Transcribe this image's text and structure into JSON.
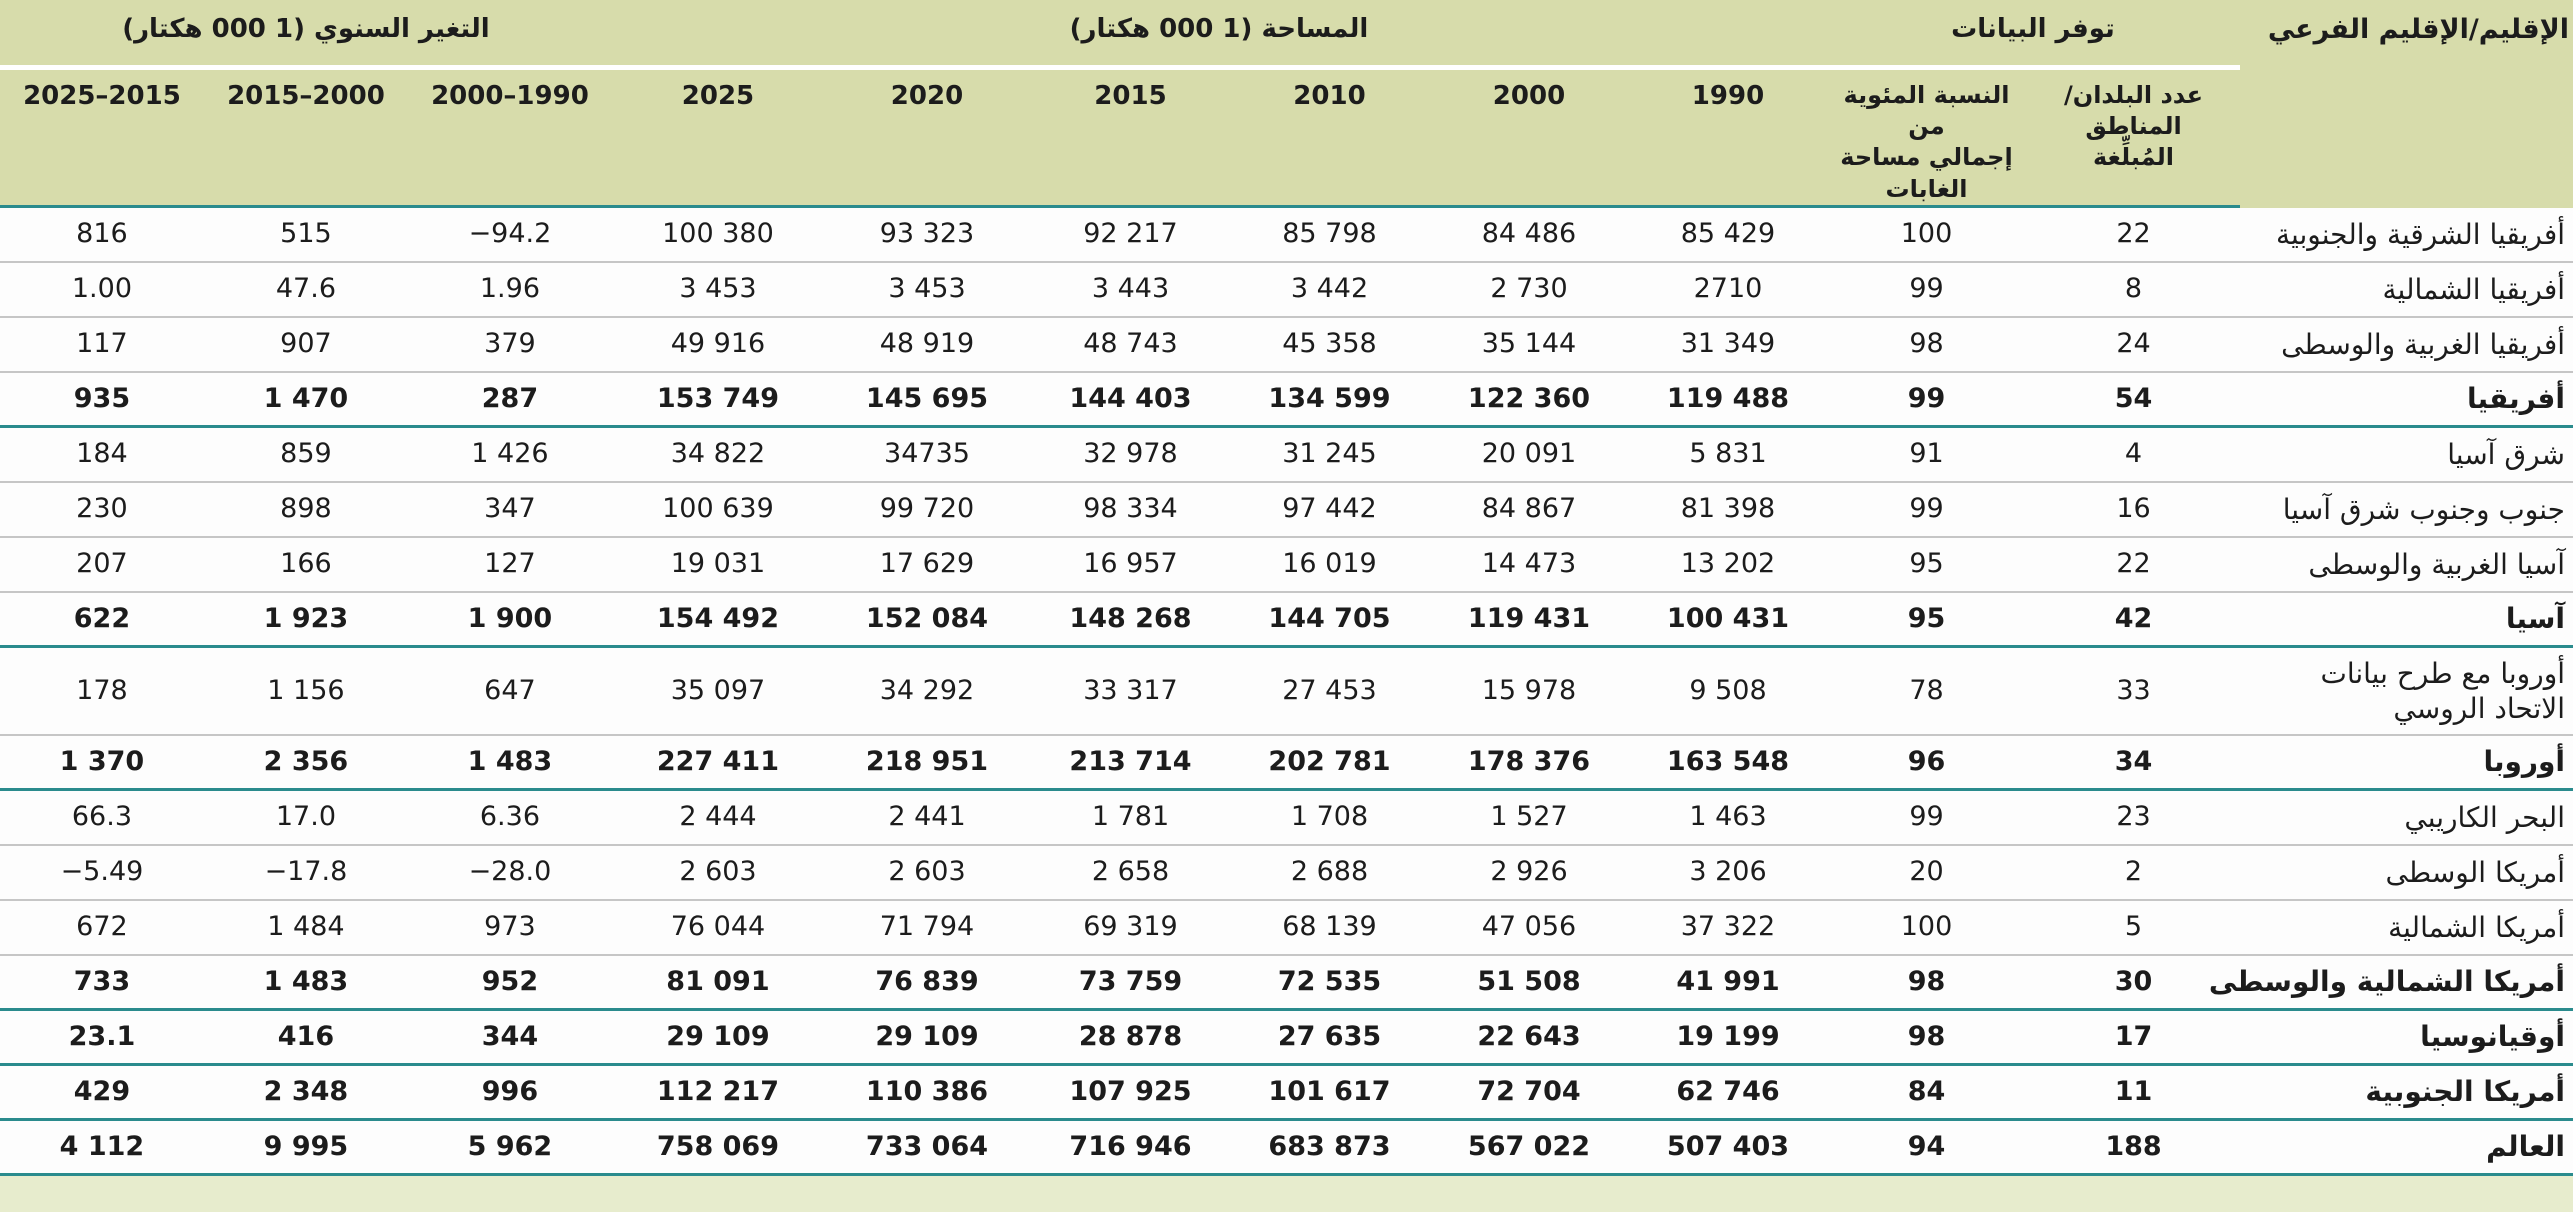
{
  "colors": {
    "header_background": "#d7dcab",
    "footer_strip": "#e7eccd",
    "accent_teal": "#2a8b8d",
    "row_separator": "#c6c6c6"
  },
  "table": {
    "region_header": "الإقليم/الإقليم الفرعي",
    "groups": {
      "availability": "توفر البيانات",
      "area": "المساحة (1 000 هكتار)",
      "change": "التغير السنوي (1 000 هكتار)"
    },
    "columns": {
      "count": "عدد البلدان/المناطق\nالمُبلِّغة",
      "pct": "النسبة المئوية من\nإجمالي مساحة\nالغابات",
      "y1990": "1990",
      "y2000": "2000",
      "y2010": "2010",
      "y2015": "2015",
      "y2020": "2020",
      "y2025": "2025",
      "c1990_2000": "2000–1990",
      "c2000_2015": "2015–2000",
      "c2015_2025": "2025–2015"
    },
    "rows": [
      {
        "region": "أفريقيا الشرقية والجنوبية",
        "bold": false,
        "tall": false,
        "sep": "gray",
        "cells": [
          "22",
          "100",
          "85 429",
          "84 486",
          "85 798",
          "92 217",
          "93 323",
          "100 380",
          "−94.2",
          "515",
          "816"
        ]
      },
      {
        "region": "أفريقيا الشمالية",
        "bold": false,
        "tall": false,
        "sep": "gray",
        "cells": [
          "8",
          "99",
          "2710",
          "2 730",
          "3 442",
          "3 443",
          "3 453",
          "3 453",
          "1.96",
          "47.6",
          "1.00"
        ]
      },
      {
        "region": "أفريقيا الغربية والوسطى",
        "bold": false,
        "tall": false,
        "sep": "gray",
        "cells": [
          "24",
          "98",
          "31 349",
          "35 144",
          "45 358",
          "48 743",
          "48 919",
          "49 916",
          "379",
          "907",
          "117"
        ]
      },
      {
        "region": "أفريقيا",
        "bold": true,
        "tall": false,
        "sep": "teal",
        "cells": [
          "54",
          "99",
          "119 488",
          "122 360",
          "134 599",
          "144 403",
          "145 695",
          "153 749",
          "287",
          "1 470",
          "935"
        ]
      },
      {
        "region": "شرق آسيا",
        "bold": false,
        "tall": false,
        "sep": "gray",
        "cells": [
          "4",
          "91",
          "5 831",
          "20 091",
          "31 245",
          "32 978",
          "34735",
          "34 822",
          "1 426",
          "859",
          "184"
        ]
      },
      {
        "region": "جنوب وجنوب شرق آسيا",
        "bold": false,
        "tall": false,
        "sep": "gray",
        "cells": [
          "16",
          "99",
          "81 398",
          "84 867",
          "97 442",
          "98 334",
          "99 720",
          "100 639",
          "347",
          "898",
          "230"
        ]
      },
      {
        "region": "آسيا الغربية والوسطى",
        "bold": false,
        "tall": false,
        "sep": "gray",
        "cells": [
          "22",
          "95",
          "13 202",
          "14 473",
          "16 019",
          "16 957",
          "17 629",
          "19 031",
          "127",
          "166",
          "207"
        ]
      },
      {
        "region": "آسيا",
        "bold": true,
        "tall": false,
        "sep": "teal",
        "cells": [
          "42",
          "95",
          "100 431",
          "119 431",
          "144 705",
          "148 268",
          "152 084",
          "154 492",
          "1 900",
          "1 923",
          "622"
        ]
      },
      {
        "region": "أوروبا مع طرح بيانات الاتحاد الروسي",
        "bold": false,
        "tall": true,
        "sep": "gray",
        "cells": [
          "33",
          "78",
          "9 508",
          "15 978",
          "27 453",
          "33 317",
          "34 292",
          "35 097",
          "647",
          "1 156",
          "178"
        ]
      },
      {
        "region": "أوروبا",
        "bold": true,
        "tall": false,
        "sep": "teal",
        "cells": [
          "34",
          "96",
          "163 548",
          "178 376",
          "202 781",
          "213 714",
          "218 951",
          "227 411",
          "1 483",
          "2 356",
          "1 370"
        ]
      },
      {
        "region": "البحر الكاريبي",
        "bold": false,
        "tall": false,
        "sep": "gray",
        "cells": [
          "23",
          "99",
          "1 463",
          "1 527",
          "1 708",
          "1 781",
          "2 441",
          "2 444",
          "6.36",
          "17.0",
          "66.3"
        ]
      },
      {
        "region": "أمريكا الوسطى",
        "bold": false,
        "tall": false,
        "sep": "gray",
        "cells": [
          "2",
          "20",
          "3 206",
          "2 926",
          "2 688",
          "2 658",
          "2 603",
          "2 603",
          "−28.0",
          "−17.8",
          "−5.49"
        ]
      },
      {
        "region": "أمريكا الشمالية",
        "bold": false,
        "tall": false,
        "sep": "gray",
        "cells": [
          "5",
          "100",
          "37 322",
          "47 056",
          "68 139",
          "69 319",
          "71 794",
          "76 044",
          "973",
          "1 484",
          "672"
        ]
      },
      {
        "region": "أمريكا الشمالية والوسطى",
        "bold": true,
        "tall": false,
        "sep": "teal",
        "cells": [
          "30",
          "98",
          "41 991",
          "51 508",
          "72 535",
          "73 759",
          "76 839",
          "81 091",
          "952",
          "1 483",
          "733"
        ]
      },
      {
        "region": "أوقيانوسيا",
        "bold": true,
        "tall": false,
        "sep": "teal",
        "cells": [
          "17",
          "98",
          "19 199",
          "22 643",
          "27 635",
          "28 878",
          "29 109",
          "29 109",
          "344",
          "416",
          "23.1"
        ]
      },
      {
        "region": "أمريكا الجنوبية",
        "bold": true,
        "tall": false,
        "sep": "teal",
        "cells": [
          "11",
          "84",
          "62 746",
          "72 704",
          "101 617",
          "107 925",
          "110 386",
          "112 217",
          "996",
          "2 348",
          "429"
        ]
      },
      {
        "region": "العالم",
        "bold": true,
        "tall": false,
        "sep": "teal",
        "cells": [
          "188",
          "94",
          "507 403",
          "567 022",
          "683 873",
          "716 946",
          "733 064",
          "758 069",
          "5 962",
          "9 995",
          "4 112"
        ]
      }
    ]
  }
}
